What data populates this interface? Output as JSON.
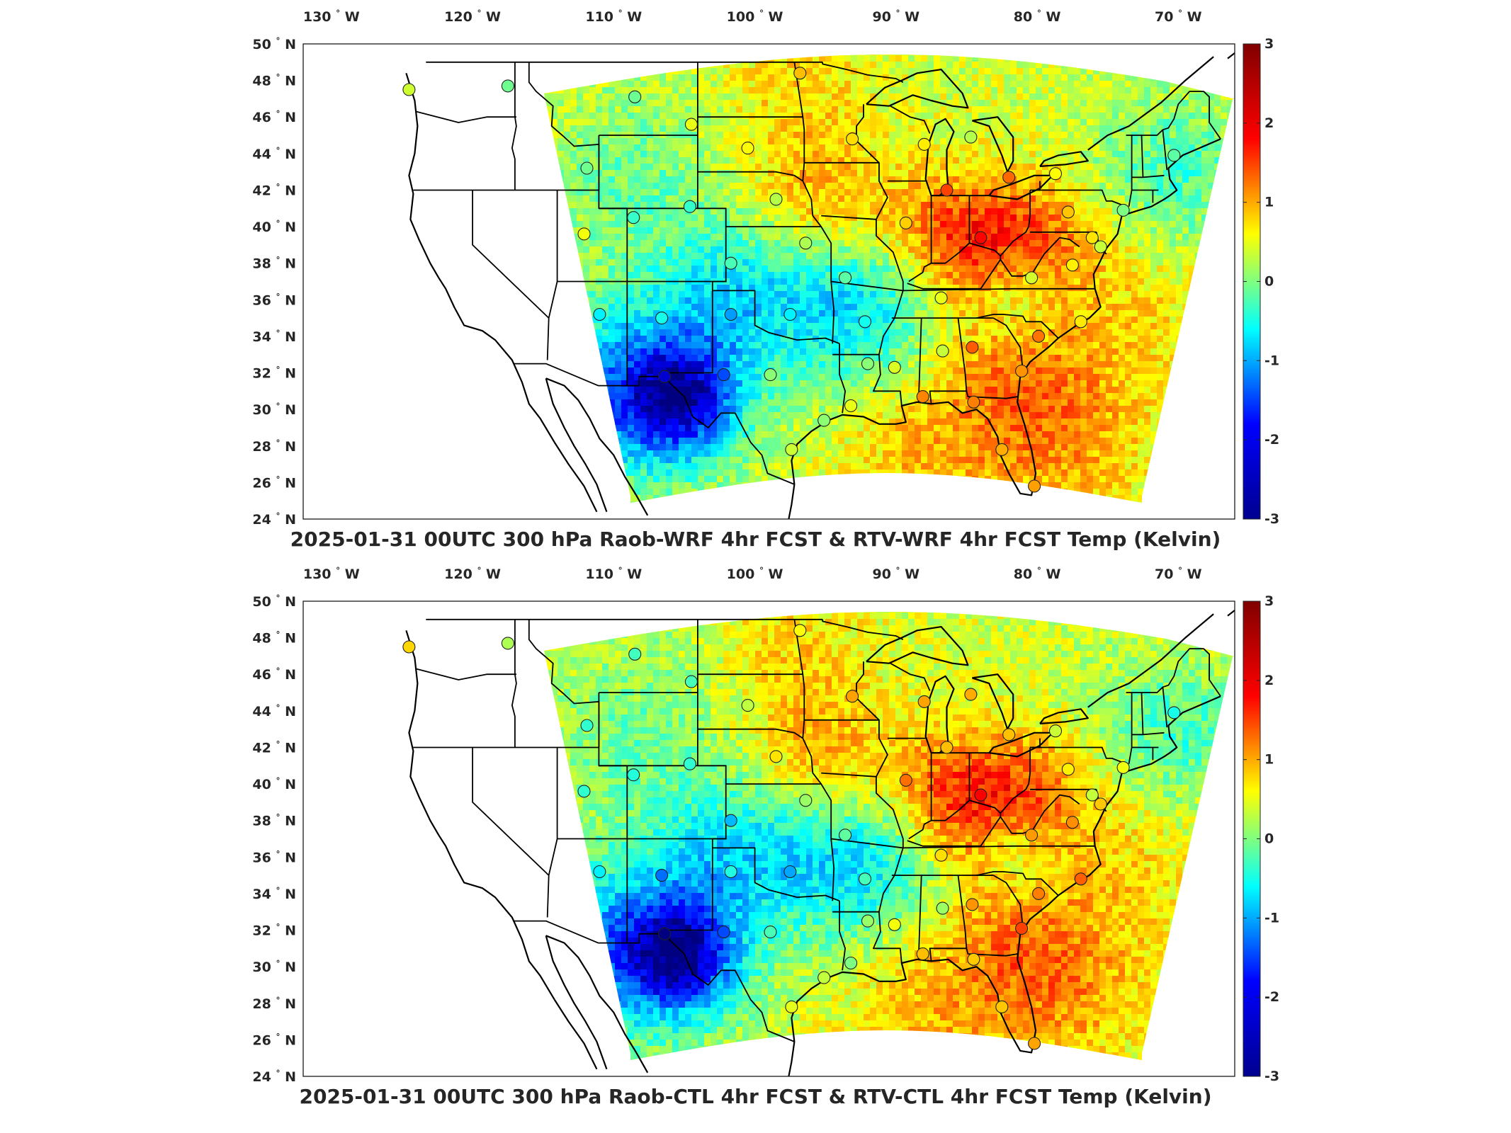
{
  "panels": [
    {
      "title": "2025-01-31 00UTC 300 hPa Raob-WRF 4hr FCST & RTV-WRF 4hr FCST Temp (Kelvin)",
      "seed": 7
    },
    {
      "title": "2025-01-31 00UTC 300 hPa Raob-CTL 4hr FCST & RTV-CTL 4hr FCST Temp (Kelvin)",
      "seed": 19
    }
  ],
  "map": {
    "lon_range": [
      -132,
      -66
    ],
    "lat_range": [
      24,
      50
    ],
    "lon_ticks": [
      {
        "value": -130,
        "label": "130",
        "hem": "W"
      },
      {
        "value": -120,
        "label": "120",
        "hem": "W"
      },
      {
        "value": -110,
        "label": "110",
        "hem": "W"
      },
      {
        "value": -100,
        "label": "100",
        "hem": "W"
      },
      {
        "value": -90,
        "label": "90",
        "hem": "W"
      },
      {
        "value": -80,
        "label": "80",
        "hem": "W"
      },
      {
        "value": -70,
        "label": "70",
        "hem": "W"
      }
    ],
    "lat_ticks": [
      {
        "value": 24,
        "label": "24",
        "hem": "N"
      },
      {
        "value": 26,
        "label": "26",
        "hem": "N"
      },
      {
        "value": 28,
        "label": "28",
        "hem": "N"
      },
      {
        "value": 30,
        "label": "30",
        "hem": "N"
      },
      {
        "value": 32,
        "label": "32",
        "hem": "N"
      },
      {
        "value": 34,
        "label": "34",
        "hem": "N"
      },
      {
        "value": 36,
        "label": "36",
        "hem": "N"
      },
      {
        "value": 38,
        "label": "38",
        "hem": "N"
      },
      {
        "value": 40,
        "label": "40",
        "hem": "N"
      },
      {
        "value": 42,
        "label": "42",
        "hem": "N"
      },
      {
        "value": 44,
        "label": "44",
        "hem": "N"
      },
      {
        "value": 46,
        "label": "46",
        "hem": "N"
      },
      {
        "value": 48,
        "label": "48",
        "hem": "N"
      },
      {
        "value": 50,
        "label": "50",
        "hem": "N"
      }
    ],
    "degree_symbol": "°",
    "colorbar": {
      "min": -3,
      "max": 3,
      "ticks": [
        "3",
        "2",
        "1",
        "0",
        "-1",
        "-2",
        "-3"
      ],
      "colormap": "jet",
      "colors": [
        "#00008f",
        "#0000ff",
        "#00ffff",
        "#ffff00",
        "#ff0000",
        "#800000"
      ]
    },
    "raob_stations": [
      {
        "lon": -124.5,
        "lat": 47.5
      },
      {
        "lon": -117.5,
        "lat": 47.7
      },
      {
        "lon": -108.5,
        "lat": 47.1
      },
      {
        "lon": -104.5,
        "lat": 45.6
      },
      {
        "lon": -96.8,
        "lat": 48.4
      },
      {
        "lon": -93.1,
        "lat": 44.8
      },
      {
        "lon": -100.5,
        "lat": 44.3
      },
      {
        "lon": -111.9,
        "lat": 43.2
      },
      {
        "lon": -108.6,
        "lat": 40.5
      },
      {
        "lon": -104.6,
        "lat": 41.1
      },
      {
        "lon": -98.5,
        "lat": 41.5
      },
      {
        "lon": -96.4,
        "lat": 39.1
      },
      {
        "lon": -101.7,
        "lat": 38.0
      },
      {
        "lon": -112.1,
        "lat": 39.6
      },
      {
        "lon": -111.0,
        "lat": 35.2
      },
      {
        "lon": -106.6,
        "lat": 35.0
      },
      {
        "lon": -101.7,
        "lat": 35.2
      },
      {
        "lon": -97.5,
        "lat": 35.2
      },
      {
        "lon": -93.6,
        "lat": 37.2
      },
      {
        "lon": -92.2,
        "lat": 34.8
      },
      {
        "lon": -90.1,
        "lat": 32.3
      },
      {
        "lon": -86.7,
        "lat": 33.2
      },
      {
        "lon": -84.6,
        "lat": 33.4
      },
      {
        "lon": -81.1,
        "lat": 32.1
      },
      {
        "lon": -82.5,
        "lat": 27.8
      },
      {
        "lon": -80.2,
        "lat": 25.8
      },
      {
        "lon": -97.4,
        "lat": 27.8
      },
      {
        "lon": -95.1,
        "lat": 29.4
      },
      {
        "lon": -98.9,
        "lat": 31.9
      },
      {
        "lon": -102.2,
        "lat": 31.9
      },
      {
        "lon": -106.4,
        "lat": 31.8
      },
      {
        "lon": -86.8,
        "lat": 36.1
      },
      {
        "lon": -84.0,
        "lat": 39.4
      },
      {
        "lon": -89.3,
        "lat": 40.2
      },
      {
        "lon": -86.4,
        "lat": 42.0
      },
      {
        "lon": -88.0,
        "lat": 44.5
      },
      {
        "lon": -84.7,
        "lat": 44.9
      },
      {
        "lon": -82.0,
        "lat": 42.7
      },
      {
        "lon": -78.7,
        "lat": 42.9
      },
      {
        "lon": -77.8,
        "lat": 40.8
      },
      {
        "lon": -76.1,
        "lat": 39.4
      },
      {
        "lon": -77.5,
        "lat": 37.9
      },
      {
        "lon": -75.5,
        "lat": 38.9
      },
      {
        "lon": -73.9,
        "lat": 40.9
      },
      {
        "lon": -70.3,
        "lat": 43.9
      },
      {
        "lon": -80.4,
        "lat": 37.2
      },
      {
        "lon": -79.9,
        "lat": 34.0
      },
      {
        "lon": -76.9,
        "lat": 34.8
      },
      {
        "lon": -84.5,
        "lat": 30.4
      },
      {
        "lon": -88.1,
        "lat": 30.7
      },
      {
        "lon": -92.0,
        "lat": 32.5
      },
      {
        "lon": -93.2,
        "lat": 30.2
      }
    ]
  }
}
